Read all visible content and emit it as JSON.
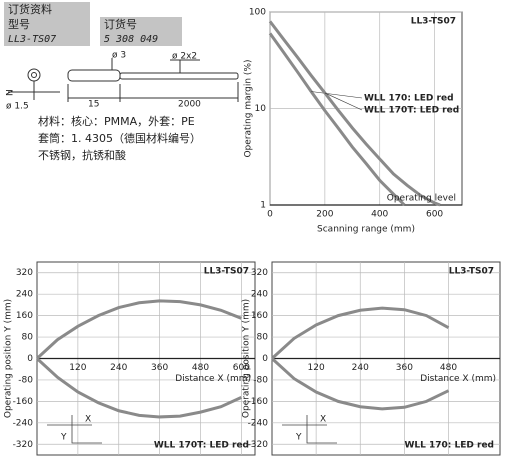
{
  "order_info": {
    "title": "订货资料",
    "headers": [
      "型号",
      "订货号"
    ],
    "values": [
      "LL3-TS07",
      "5 308 049"
    ]
  },
  "dimensions": {
    "labels": [
      "N",
      "ø 1.5",
      "ø 3",
      "ø 2x2",
      "15",
      "2000"
    ]
  },
  "materials": [
    "材料：核心：PMMA，外套：PE",
    "套筒：1. 4305（德国材料编号）",
    "不锈钢，抗锈和酸"
  ],
  "chart_data": [
    {
      "type": "line",
      "title": "LL3-TS07",
      "x_label": "Scanning range (mm)",
      "y_label": "Operating margin (%)",
      "log_y": true,
      "grid": true,
      "xlim": [
        0,
        700
      ],
      "ylim": [
        1,
        100
      ],
      "xticks": [
        0,
        200,
        400,
        600
      ],
      "yticks": [
        1,
        10,
        100
      ],
      "annotations": [
        "Operating level"
      ],
      "series": [
        {
          "name": "WLL 170: LED red",
          "color": "#8a8a8a",
          "x": [
            0,
            50,
            100,
            150,
            200,
            250,
            300,
            350,
            400,
            450,
            490
          ],
          "values": [
            60,
            38,
            24,
            15,
            9.5,
            6.2,
            4,
            2.7,
            1.8,
            1.3,
            1
          ]
        },
        {
          "name": "WLL 170T: LED red",
          "color": "#8a8a8a",
          "x": [
            0,
            50,
            100,
            150,
            200,
            250,
            300,
            350,
            400,
            450,
            500,
            550,
            600,
            620
          ],
          "values": [
            80,
            52,
            34,
            22,
            14.5,
            9.5,
            6.3,
            4.3,
            3,
            2.1,
            1.6,
            1.25,
            1.05,
            1
          ]
        }
      ]
    },
    {
      "type": "line",
      "title": "LL3-TS07",
      "caption": "WLL 170T: LED red",
      "x_label": "Distance X (mm)",
      "y_label": "Operating position Y (mm)",
      "grid": true,
      "xlim": [
        0,
        640
      ],
      "ylim": [
        -360,
        360
      ],
      "xticks": [
        120,
        240,
        360,
        480,
        600
      ],
      "yticks": [
        -320,
        -240,
        -160,
        -80,
        0,
        80,
        160,
        240,
        320
      ],
      "inset_labels": [
        "X",
        "Y"
      ],
      "series": [
        {
          "color": "#8a8a8a",
          "x": [
            0,
            60,
            120,
            180,
            240,
            300,
            360,
            420,
            480,
            540,
            600
          ],
          "values": [
            0,
            70,
            120,
            160,
            190,
            208,
            215,
            212,
            200,
            180,
            150
          ]
        },
        {
          "color": "#8a8a8a",
          "x": [
            0,
            60,
            120,
            180,
            240,
            300,
            360,
            420,
            480,
            540,
            600
          ],
          "values": [
            0,
            -70,
            -125,
            -165,
            -195,
            -212,
            -218,
            -215,
            -200,
            -180,
            -145
          ]
        }
      ]
    },
    {
      "type": "line",
      "title": "LL3-TS07",
      "caption": "WLL 170: LED red",
      "x_label": "Distance X (mm)",
      "y_label": "Operating position Y (mm)",
      "grid": true,
      "xlim": [
        0,
        620
      ],
      "ylim": [
        -360,
        360
      ],
      "xticks": [
        120,
        240,
        360,
        480
      ],
      "yticks": [
        -320,
        -240,
        -160,
        -80,
        0,
        80,
        160,
        240,
        320
      ],
      "inset_labels": [
        "X",
        "Y"
      ],
      "series": [
        {
          "color": "#8a8a8a",
          "x": [
            0,
            60,
            120,
            180,
            240,
            300,
            360,
            420,
            480
          ],
          "values": [
            0,
            75,
            125,
            160,
            180,
            188,
            182,
            160,
            115
          ]
        },
        {
          "color": "#8a8a8a",
          "x": [
            0,
            60,
            120,
            180,
            240,
            300,
            360,
            420,
            480
          ],
          "values": [
            0,
            -75,
            -125,
            -160,
            -180,
            -188,
            -182,
            -160,
            -120
          ]
        }
      ]
    }
  ]
}
